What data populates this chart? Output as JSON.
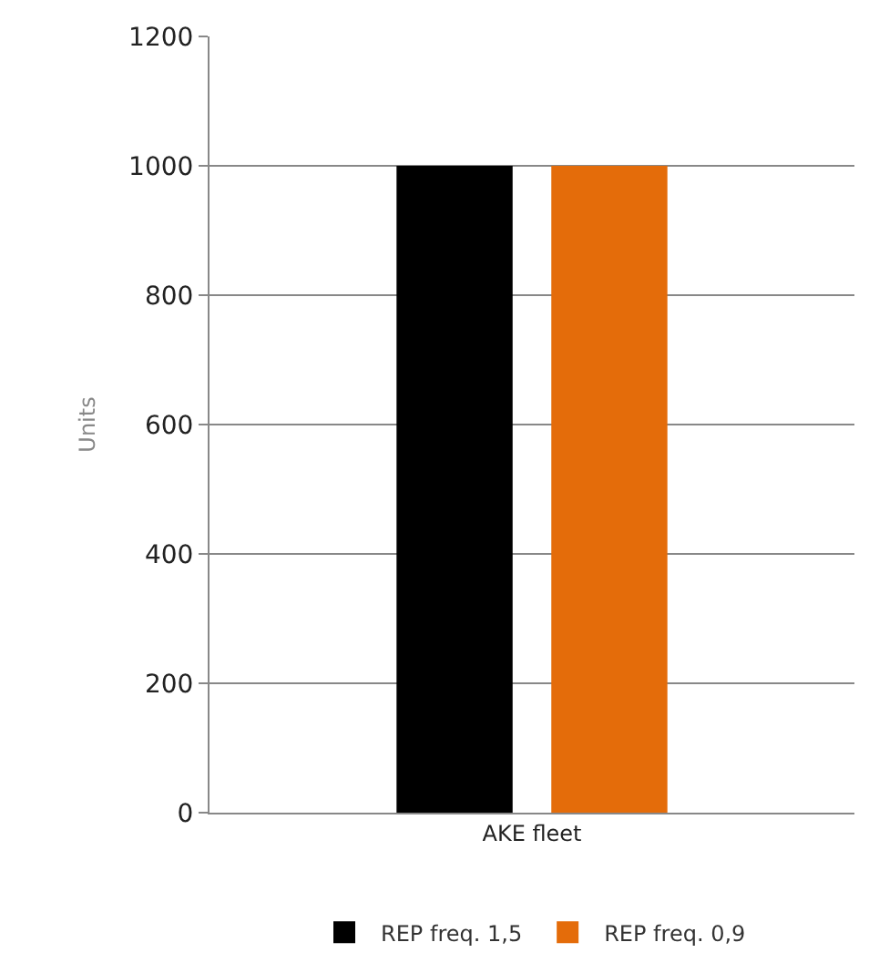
{
  "chart_data": {
    "type": "bar",
    "ylabel": "Units",
    "categories": [
      "AKE fleet"
    ],
    "series": [
      {
        "name": "REP freq. 1,5",
        "color": "#000000",
        "values": [
          1000
        ]
      },
      {
        "name": "REP freq. 0,9",
        "color": "#e46c0a",
        "values": [
          1000
        ]
      }
    ],
    "ylim": [
      0,
      1200
    ],
    "yticks": [
      0,
      200,
      400,
      600,
      800,
      1000,
      1200
    ],
    "grid": "y",
    "legend": "bottom"
  }
}
